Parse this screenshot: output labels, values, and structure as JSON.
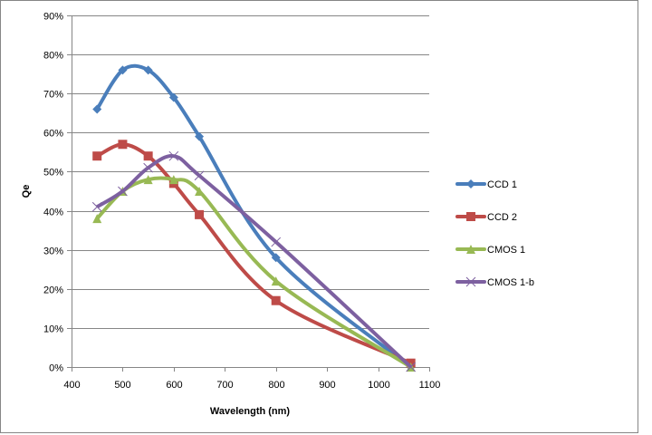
{
  "chart_data": {
    "type": "line",
    "smooth": true,
    "xlabel": "Wavelength (nm)",
    "ylabel": "Qe",
    "xlim": [
      400,
      1100
    ],
    "ylim": [
      0,
      0.9
    ],
    "x_ticks": [
      "400",
      "500",
      "600",
      "700",
      "800",
      "900",
      "1000",
      "1100"
    ],
    "y_ticks": [
      "0%",
      "10%",
      "20%",
      "30%",
      "40%",
      "50%",
      "60%",
      "70%",
      "80%",
      "90%"
    ],
    "grid": "horizontal",
    "legend": "right",
    "series": [
      {
        "name": "CCD 1",
        "color": "#4a7ebb",
        "marker": "diamond",
        "x": [
          450,
          500,
          550,
          600,
          650,
          800,
          1064
        ],
        "values": [
          0.66,
          0.76,
          0.76,
          0.69,
          0.59,
          0.28,
          0.0
        ]
      },
      {
        "name": "CCD 2",
        "color": "#be4b48",
        "marker": "square",
        "x": [
          450,
          500,
          550,
          600,
          650,
          800,
          1064
        ],
        "values": [
          0.54,
          0.57,
          0.54,
          0.47,
          0.39,
          0.17,
          0.01
        ]
      },
      {
        "name": "CMOS 1",
        "color": "#98b954",
        "marker": "triangle",
        "x": [
          450,
          500,
          550,
          600,
          650,
          800,
          1064
        ],
        "values": [
          0.38,
          0.45,
          0.48,
          0.48,
          0.45,
          0.22,
          0.0
        ]
      },
      {
        "name": "CMOS 1-b",
        "color": "#7d60a0",
        "marker": "x",
        "x": [
          450,
          500,
          550,
          600,
          650,
          800,
          1064
        ],
        "values": [
          0.41,
          0.45,
          0.51,
          0.54,
          0.49,
          0.32,
          0.0
        ]
      }
    ]
  }
}
